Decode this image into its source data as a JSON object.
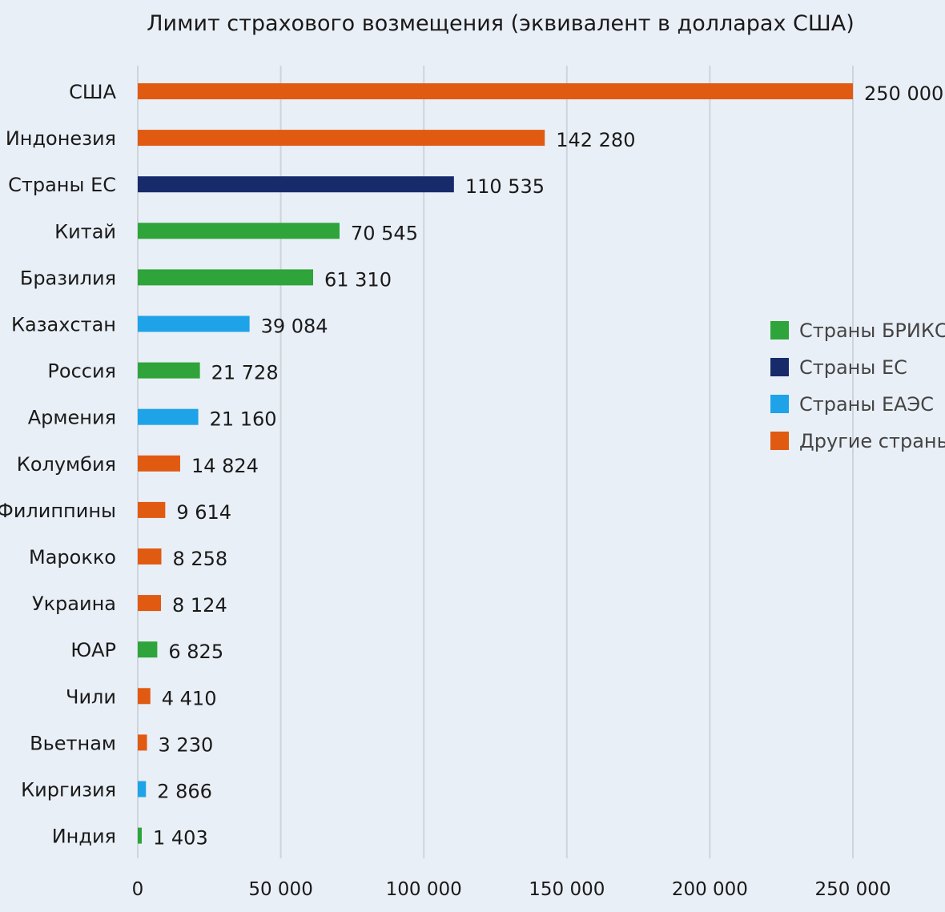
{
  "chart_data": {
    "type": "bar",
    "orientation": "horizontal",
    "title": "Лимит страхового возмещения (эквивалент в долларах США)",
    "xlabel": "",
    "ylabel": "",
    "xlim": [
      0,
      250000
    ],
    "x_ticks": [
      0,
      50000,
      100000,
      150000,
      200000,
      250000
    ],
    "x_tick_labels": [
      "0",
      "50 000",
      "100 000",
      "150 000",
      "200 000",
      "250 000"
    ],
    "grid": "vertical",
    "legend_position": "right",
    "categories": [
      "США",
      "Индонезия",
      "Страны ЕС",
      "Китай",
      "Бразилия",
      "Казахстан",
      "Россия",
      "Армения",
      "Колумбия",
      "Филиппины",
      "Марокко",
      "Украина",
      "ЮАР",
      "Чили",
      "Вьетнам",
      "Киргизия",
      "Индия"
    ],
    "values": [
      250000,
      142280,
      110535,
      70545,
      61310,
      39084,
      21728,
      21160,
      14824,
      9614,
      8258,
      8124,
      6825,
      4410,
      3230,
      2866,
      1403
    ],
    "value_labels": [
      "250 000",
      "142 280",
      "110 535",
      "70 545",
      "61 310",
      "39 084",
      "21 728",
      "21 160",
      "14 824",
      "9 614",
      "8 258",
      "8 124",
      "6 825",
      "4 410",
      "3 230",
      "2 866",
      "1 403"
    ],
    "groups": [
      "other",
      "other",
      "eu",
      "brics",
      "brics",
      "eaeu",
      "brics",
      "eaeu",
      "other",
      "other",
      "other",
      "other",
      "brics",
      "other",
      "other",
      "eaeu",
      "brics"
    ],
    "legend": [
      {
        "key": "brics",
        "label": "Страны БРИКС",
        "color": "#2ea43a"
      },
      {
        "key": "eu",
        "label": "Страны ЕС",
        "color": "#172b6b"
      },
      {
        "key": "eaeu",
        "label": "Страны ЕАЭС",
        "color": "#1ea3e8"
      },
      {
        "key": "other",
        "label": "Другие страны",
        "color": "#e05a12"
      }
    ]
  }
}
